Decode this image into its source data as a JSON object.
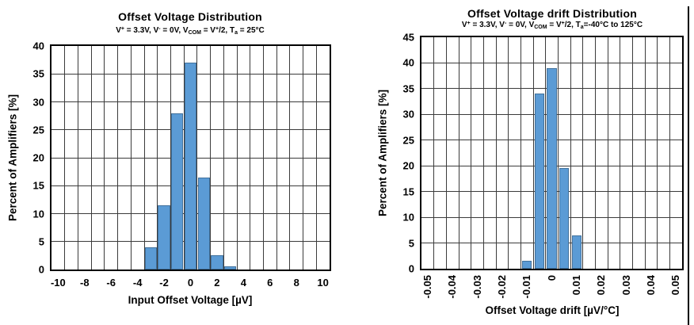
{
  "style": {
    "grid_color": "#3b3b3b",
    "axis_color": "#000000",
    "background": "#ffffff",
    "page_border_line_color": "#000000"
  },
  "chart_data": [
    {
      "type": "bar",
      "title": "Offset Voltage Distribution",
      "subtitle_text": "V+ = 3.3V, V- = 0V, VCOM = V+/2, Ta = 25°C",
      "subtitle_segments": [
        {
          "t": "V"
        },
        {
          "t": "+",
          "s": "sup"
        },
        {
          "t": " = 3.3V, V"
        },
        {
          "t": "-",
          "s": "sup"
        },
        {
          "t": " = 0V, V"
        },
        {
          "t": "COM",
          "s": "sub"
        },
        {
          "t": " = V"
        },
        {
          "t": "+",
          "s": "sup"
        },
        {
          "t": "/2, T"
        },
        {
          "t": "a",
          "s": "sub"
        },
        {
          "t": " = 25°C"
        }
      ],
      "xlabel": "Input Offset Voltage [µV]",
      "ylabel": "Percent of Amplifiers [%]",
      "x_range": [
        -10.5,
        10.5
      ],
      "bin_width": 1,
      "categories": [
        -3,
        -2,
        -1,
        0,
        1,
        2,
        3
      ],
      "values": [
        4,
        11.5,
        28,
        37,
        16.5,
        2.5,
        0.5
      ],
      "ylim": [
        0,
        40
      ],
      "ytick_step": 5,
      "ytick_labels": [
        "0",
        "5",
        "10",
        "15",
        "20",
        "25",
        "30",
        "35",
        "40"
      ],
      "xticks": [
        -10,
        -8,
        -6,
        -4,
        -2,
        0,
        2,
        4,
        6,
        8,
        10
      ],
      "xtick_labels": [
        "-10",
        "-8",
        "-6",
        "-4",
        "-2",
        "0",
        "2",
        "4",
        "6",
        "8",
        "10"
      ],
      "xtick_rotated": false,
      "grid": true,
      "bar_color": "#5B9BD5",
      "bar_border_color": "#41719C",
      "bar_fill_fraction": 0.92
    },
    {
      "type": "bar",
      "title": "Offset Voltage drift Distribution",
      "subtitle_text": "V+ = 3.3V, V- = 0V, VCOM = V+/2, Ta=-40°C to 125°C",
      "subtitle_segments": [
        {
          "t": "V"
        },
        {
          "t": "+",
          "s": "sup"
        },
        {
          "t": " = 3.3V, V"
        },
        {
          "t": "-",
          "s": "sup"
        },
        {
          "t": " = 0V, V"
        },
        {
          "t": "COM",
          "s": "sub"
        },
        {
          "t": " = V"
        },
        {
          "t": "+",
          "s": "sup"
        },
        {
          "t": "/2, T"
        },
        {
          "t": "a",
          "s": "sub"
        },
        {
          "t": "=-40°C to 125°C"
        }
      ],
      "xlabel": "Offset Voltage drift [µV/°C]",
      "ylabel": "Percent of Amplifiers [%]",
      "x_range": [
        -0.0525,
        0.0525
      ],
      "bin_width": 0.005,
      "categories": [
        -0.01,
        -0.005,
        0,
        0.005,
        0.01
      ],
      "values": [
        1.6,
        34,
        39,
        19.5,
        6.5
      ],
      "ylim": [
        0,
        45
      ],
      "ytick_step": 5,
      "ytick_labels": [
        "0",
        "5",
        "10",
        "15",
        "20",
        "25",
        "30",
        "35",
        "40",
        "45"
      ],
      "xticks": [
        -0.05,
        -0.04,
        -0.03,
        -0.02,
        -0.01,
        0,
        0.01,
        0.02,
        0.03,
        0.04,
        0.05
      ],
      "xtick_labels": [
        "-0.05",
        "-0.04",
        "-0.03",
        "-0.02",
        "-0.01",
        "0",
        "0.01",
        "0.02",
        "0.03",
        "0.04",
        "0.05"
      ],
      "xtick_rotated": true,
      "grid": true,
      "bar_color": "#5B9BD5",
      "bar_border_color": "#41719C",
      "bar_fill_fraction": 0.8
    }
  ]
}
